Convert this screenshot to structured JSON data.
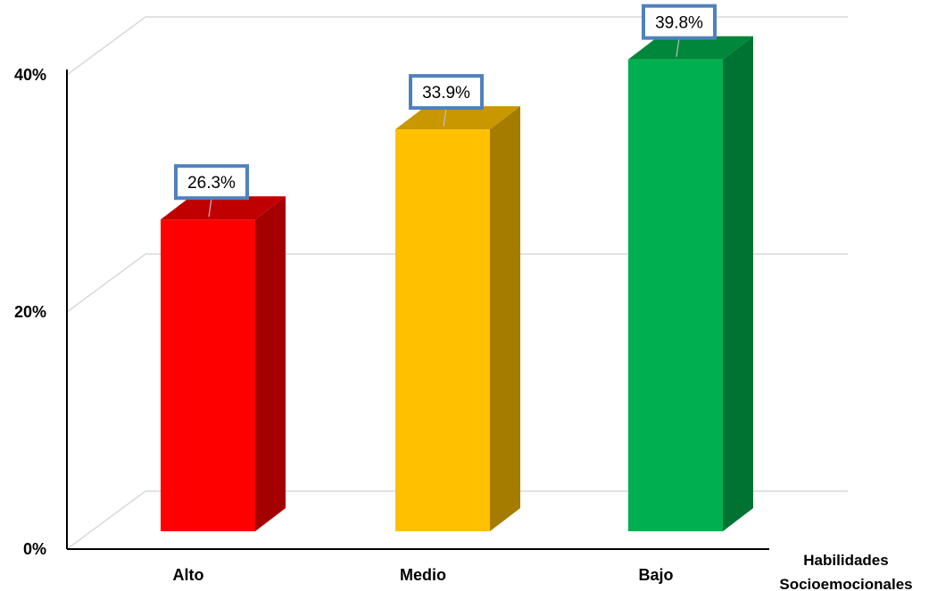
{
  "chart_data": {
    "type": "bar",
    "style": "3d-column",
    "categories": [
      "Alto",
      "Medio",
      "Bajo"
    ],
    "values": [
      26.3,
      33.9,
      39.8
    ],
    "data_labels": [
      "26.3%",
      "33.9%",
      "39.8%"
    ],
    "colors": [
      "#ff0000",
      "#ffc000",
      "#00b050"
    ],
    "side_colors": [
      "#a50000",
      "#a67c00",
      "#007332"
    ],
    "top_colors": [
      "#c00000",
      "#c99700",
      "#00873b"
    ],
    "label_border_color": "#4f81bd",
    "ylim": [
      0,
      40
    ],
    "yticks": [
      0,
      20,
      40
    ],
    "ytick_labels": [
      "0%",
      "20%",
      "40%"
    ],
    "xlabel_lines": [
      "Habilidades",
      "Socioemocionales"
    ],
    "grid": true
  }
}
